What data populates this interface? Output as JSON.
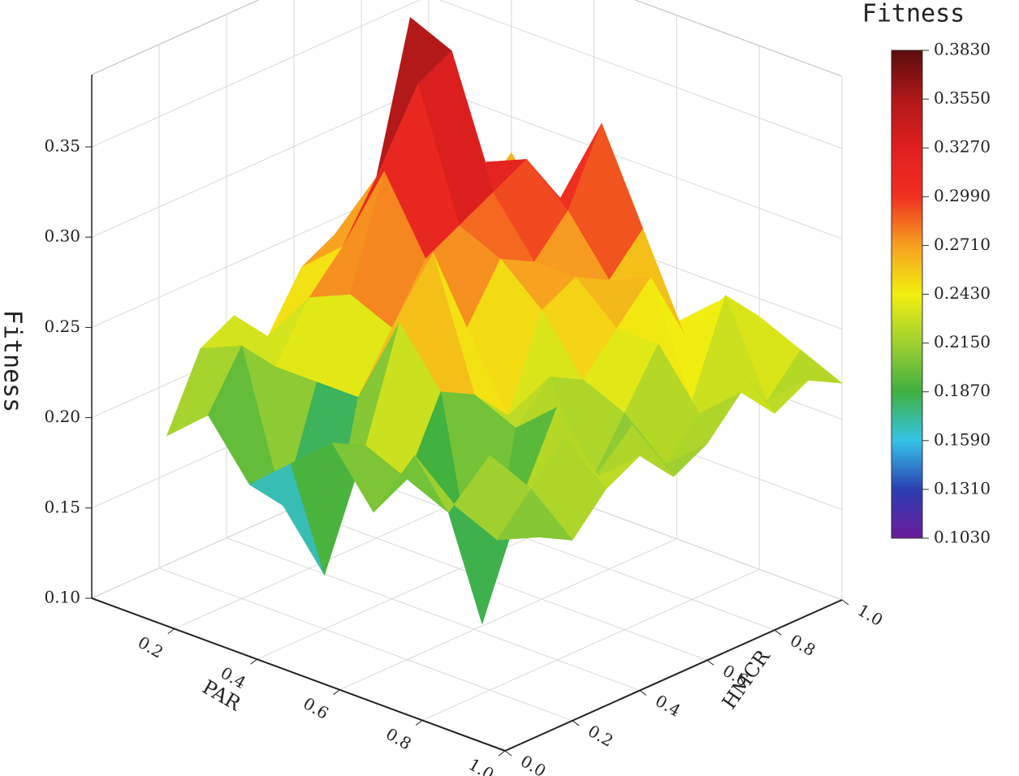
{
  "chart_data": {
    "type": "surface3d",
    "x_label": "PAR",
    "y_label": "HMCR",
    "z_label": "Fitness",
    "colorbar_title": "Fitness",
    "x": [
      0.1,
      0.2,
      0.3,
      0.4,
      0.5,
      0.6,
      0.7,
      0.8,
      0.9,
      1.0
    ],
    "y": [
      0.1,
      0.2,
      0.3,
      0.4,
      0.5,
      0.6,
      0.7,
      0.8,
      0.9,
      1.0
    ],
    "z": [
      [
        0.19,
        0.23,
        0.24,
        0.22,
        0.25,
        0.26,
        0.24,
        0.23,
        0.25,
        0.24
      ],
      [
        0.21,
        0.24,
        0.22,
        0.25,
        0.27,
        0.3,
        0.38,
        0.27,
        0.26,
        0.28
      ],
      [
        0.18,
        0.16,
        0.22,
        0.26,
        0.32,
        0.36,
        0.37,
        0.3,
        0.27,
        0.25
      ],
      [
        0.2,
        0.13,
        0.22,
        0.25,
        0.28,
        0.29,
        0.3,
        0.31,
        0.28,
        0.26
      ],
      [
        0.22,
        0.21,
        0.27,
        0.3,
        0.25,
        0.28,
        0.27,
        0.29,
        0.33,
        0.27
      ],
      [
        0.19,
        0.2,
        0.24,
        0.23,
        0.21,
        0.26,
        0.27,
        0.26,
        0.28,
        0.22
      ],
      [
        0.23,
        0.19,
        0.12,
        0.22,
        0.24,
        0.23,
        0.25,
        0.27,
        0.23,
        0.24
      ],
      [
        0.21,
        0.23,
        0.2,
        0.24,
        0.19,
        0.22,
        0.25,
        0.21,
        0.26,
        0.24
      ],
      [
        0.2,
        0.22,
        0.24,
        0.21,
        0.23,
        0.2,
        0.22,
        0.24,
        0.21,
        0.23
      ],
      [
        0.21,
        0.2,
        0.22,
        0.23,
        0.21,
        0.22,
        0.24,
        0.22,
        0.23,
        0.22
      ]
    ],
    "xlim": [
      0,
      1
    ],
    "ylim": [
      0,
      1
    ],
    "zlim": [
      0.1,
      0.39
    ],
    "xticks": [
      0.2,
      0.4,
      0.6,
      0.8,
      {
        "value": 1.0,
        "label": "1.0"
      }
    ],
    "yticks": [
      {
        "value": 0.0,
        "label": "0.0"
      },
      0.2,
      0.4,
      0.6,
      0.8,
      {
        "value": 1.0,
        "label": "1.0"
      }
    ],
    "zticks": [
      {
        "value": 0.1,
        "label": "0.10"
      },
      0.15,
      {
        "value": 0.2,
        "label": "0.20"
      },
      0.25,
      {
        "value": 0.3,
        "label": "0.30"
      },
      0.35
    ],
    "clim": [
      0.103,
      0.383
    ],
    "cticks": [
      {
        "value": 0.103,
        "label": "0.1030"
      },
      {
        "value": 0.131,
        "label": "0.1310"
      },
      {
        "value": 0.159,
        "label": "0.1590"
      },
      {
        "value": 0.187,
        "label": "0.1870"
      },
      {
        "value": 0.215,
        "label": "0.2150"
      },
      {
        "value": 0.243,
        "label": "0.2430"
      },
      {
        "value": 0.271,
        "label": "0.2710"
      },
      {
        "value": 0.299,
        "label": "0.2990"
      },
      {
        "value": 0.327,
        "label": "0.3270"
      },
      {
        "value": 0.355,
        "label": "0.3550"
      },
      {
        "value": 0.383,
        "label": "0.3830"
      }
    ],
    "colorscale": [
      "#6a1a9a",
      "#2b3fb0",
      "#35c3e8",
      "#3fb040",
      "#9fd030",
      "#f2ee10",
      "#f7a020",
      "#f03020",
      "#e02020",
      "#b01818",
      "#5a0c0c"
    ],
    "grid": true
  }
}
